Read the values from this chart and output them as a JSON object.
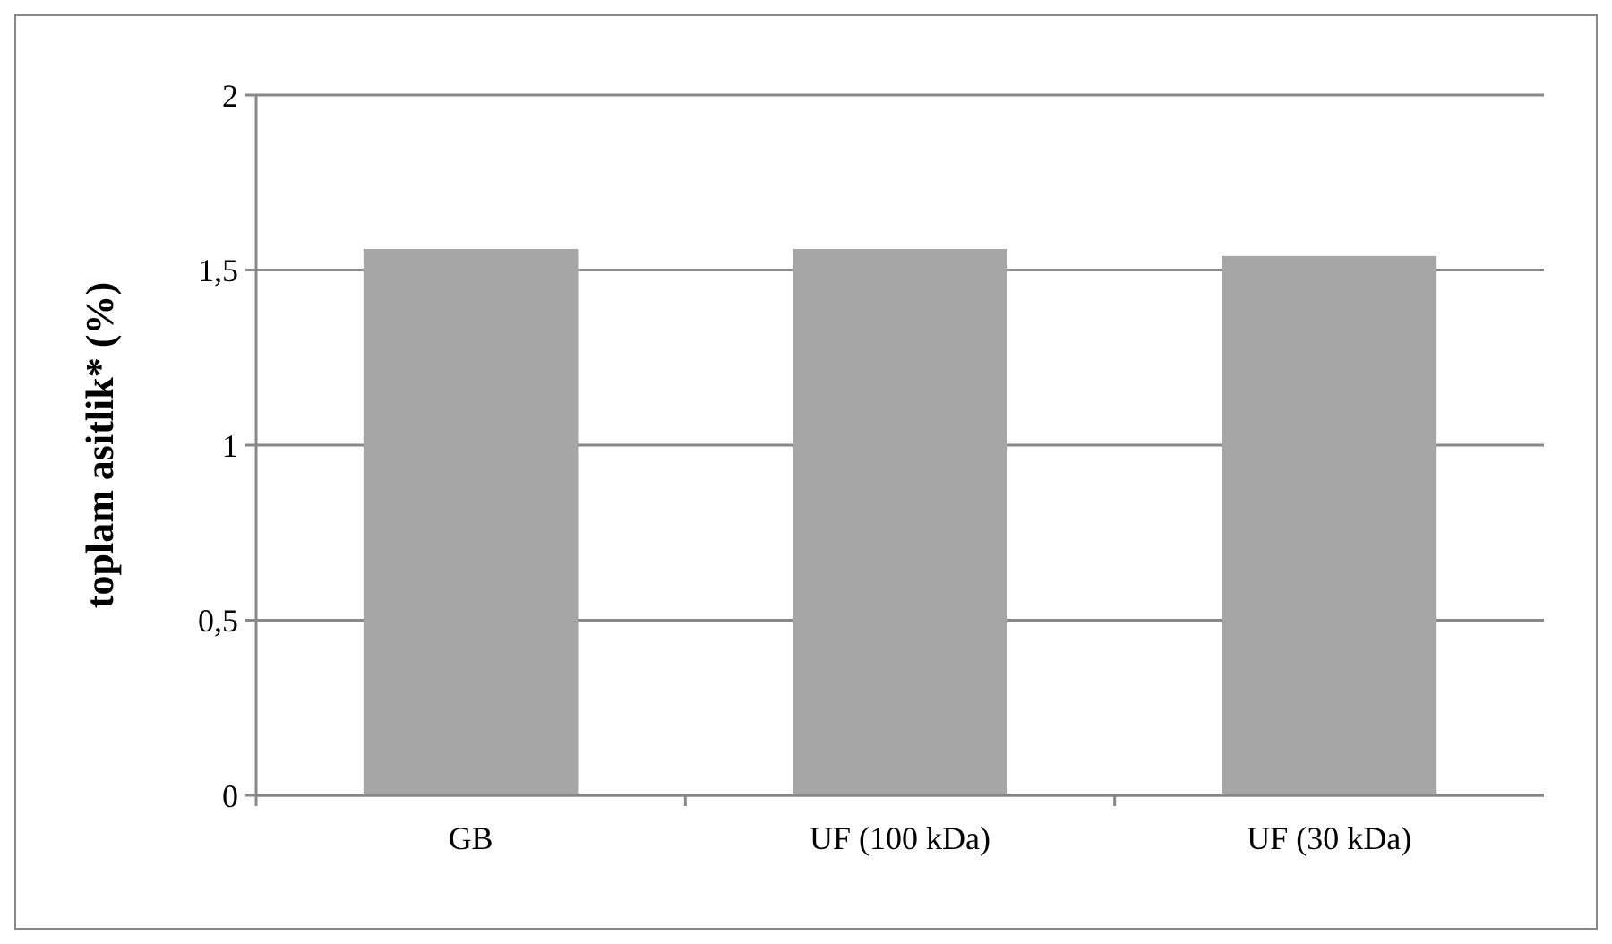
{
  "chart_data": {
    "type": "bar",
    "ylabel": "toplam asitlik* (%)",
    "categories": [
      "GB",
      "UF (100 kDa)",
      "UF (30 kDa)"
    ],
    "values": [
      1.56,
      1.56,
      1.54
    ],
    "color": "#a6a6a6",
    "ylim": [
      0,
      2
    ],
    "yticks": [
      {
        "value": 0,
        "label": "0"
      },
      {
        "value": 0.5,
        "label": "0,5"
      },
      {
        "value": 1,
        "label": "1"
      },
      {
        "value": 1.5,
        "label": "1,5"
      },
      {
        "value": 2,
        "label": "2"
      }
    ],
    "grid": "y"
  }
}
